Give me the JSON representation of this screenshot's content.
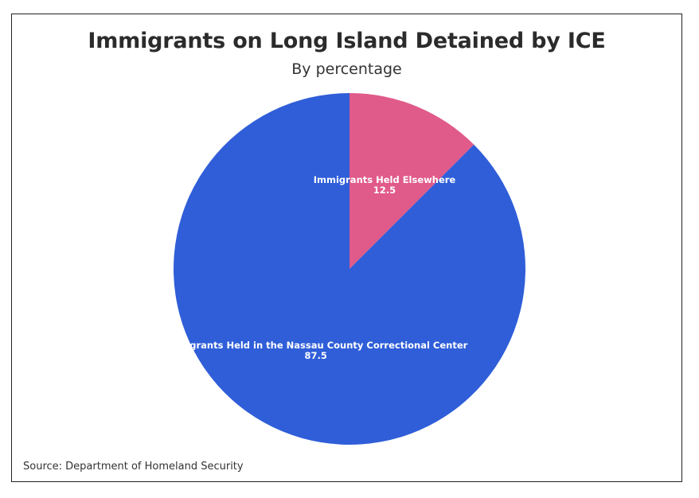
{
  "chart_data": {
    "type": "pie",
    "title": "Immigrants on Long Island Detained by ICE",
    "subtitle": "By percentage",
    "source": "Source: Department of Homeland Security",
    "categories": [
      "Immigrants Held Elsewhere",
      "Immigrants Held in the Nassau County Correctional Center"
    ],
    "values": [
      12.5,
      87.5
    ],
    "value_labels": [
      "12.5",
      "87.5"
    ],
    "colors": [
      "#e05a8a",
      "#2f5ed8"
    ],
    "start": "top",
    "direction": "clockwise",
    "legend": "none"
  }
}
